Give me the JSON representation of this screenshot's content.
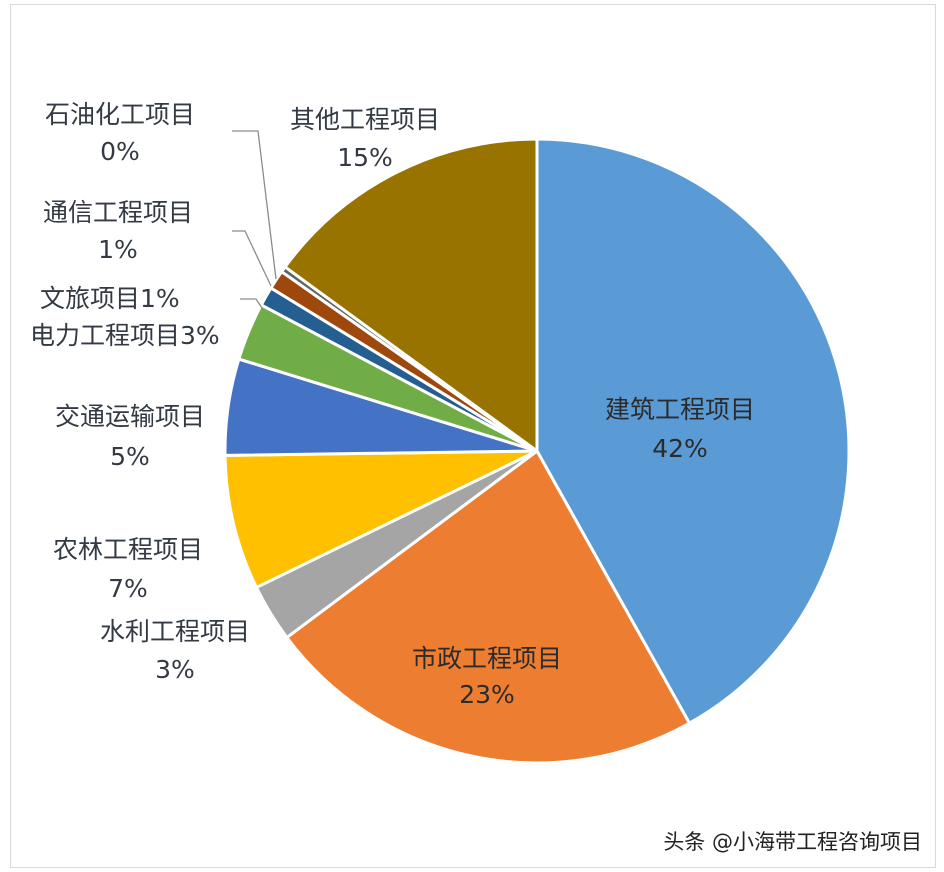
{
  "chart_data": {
    "type": "pie",
    "slices": [
      {
        "label": "建筑工程项目",
        "percent_label": "42%",
        "value": 42,
        "color": "#5b9bd5"
      },
      {
        "label": "市政工程项目",
        "percent_label": "23%",
        "value": 23,
        "color": "#ed7d31"
      },
      {
        "label": "水利工程项目",
        "percent_label": "3%",
        "value": 3,
        "color": "#a5a5a5"
      },
      {
        "label": "农林工程项目",
        "percent_label": "7%",
        "value": 7,
        "color": "#ffc000"
      },
      {
        "label": "交通运输项目",
        "percent_label": "5%",
        "value": 5,
        "color": "#4472c4"
      },
      {
        "label": "电力工程项目",
        "percent_label": "3%",
        "value": 3,
        "color": "#70ad47"
      },
      {
        "label": "文旅项目",
        "percent_label": "1%",
        "value": 1,
        "color": "#255e91"
      },
      {
        "label": "通信工程项目",
        "percent_label": "1%",
        "value": 1,
        "color": "#9e480e"
      },
      {
        "label": "石油化工项目",
        "percent_label": "0%",
        "value": 0.3,
        "color": "#636363"
      },
      {
        "label": "其他工程项目",
        "percent_label": "15%",
        "value": 15,
        "color": "#997300"
      }
    ],
    "start_angle_deg": 0,
    "direction": "clockwise"
  },
  "watermark": "头条 @小海带工程咨询项目"
}
